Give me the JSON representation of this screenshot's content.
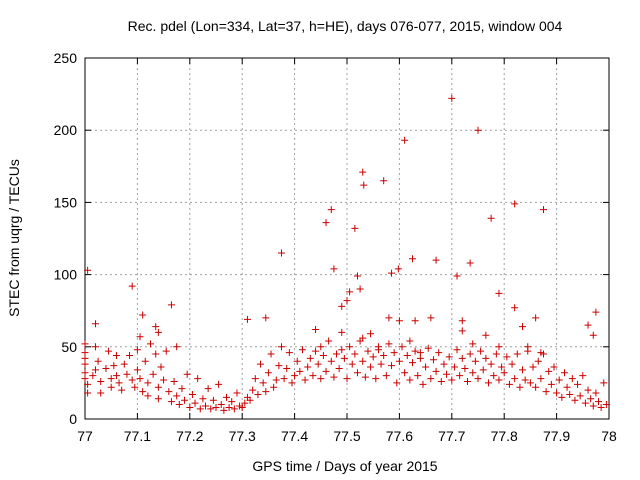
{
  "chart_data": {
    "type": "scatter",
    "title": "Rec. pdel (Lon=334, Lat=37, h=HE), days 076-077, 2015, window 004",
    "xlabel": "GPS time / Days of year 2015",
    "ylabel": "STEC from uqrg / TECUs",
    "xlim": [
      77.0,
      78.0
    ],
    "ylim": [
      0,
      250
    ],
    "xticks": [
      "77",
      "77.1",
      "77.2",
      "77.3",
      "77.4",
      "77.5",
      "77.6",
      "77.7",
      "77.8",
      "77.9",
      "78"
    ],
    "yticks": [
      "0",
      "50",
      "100",
      "150",
      "200",
      "250"
    ],
    "grid": true,
    "marker": "plus",
    "color": "#cc0000",
    "series": [
      {
        "name": "STEC",
        "points": [
          [
            77.005,
            103
          ],
          [
            77.02,
            66
          ],
          [
            77.09,
            92
          ],
          [
            77.11,
            72
          ],
          [
            77.135,
            64
          ],
          [
            77.165,
            79
          ],
          [
            77.175,
            50
          ],
          [
            77.31,
            69
          ],
          [
            77.345,
            70
          ],
          [
            77.375,
            115
          ],
          [
            77.44,
            62
          ],
          [
            77.46,
            136
          ],
          [
            77.47,
            145
          ],
          [
            77.475,
            104
          ],
          [
            77.49,
            78
          ],
          [
            77.5,
            82
          ],
          [
            77.505,
            88
          ],
          [
            77.515,
            132
          ],
          [
            77.52,
            99
          ],
          [
            77.525,
            90
          ],
          [
            77.53,
            171
          ],
          [
            77.532,
            162
          ],
          [
            77.545,
            59
          ],
          [
            77.57,
            165
          ],
          [
            77.585,
            101
          ],
          [
            77.598,
            104
          ],
          [
            77.61,
            193
          ],
          [
            77.625,
            111
          ],
          [
            77.66,
            70
          ],
          [
            77.67,
            110
          ],
          [
            77.7,
            222
          ],
          [
            77.71,
            99
          ],
          [
            77.72,
            61
          ],
          [
            77.735,
            108
          ],
          [
            77.75,
            200
          ],
          [
            77.765,
            58
          ],
          [
            77.775,
            139
          ],
          [
            77.79,
            87
          ],
          [
            77.82,
            149
          ],
          [
            77.82,
            77
          ],
          [
            77.835,
            64
          ],
          [
            77.86,
            70
          ],
          [
            77.875,
            145
          ],
          [
            77.96,
            65
          ],
          [
            77.97,
            58
          ],
          [
            77.975,
            74
          ],
          [
            77.0,
            52
          ],
          [
            77.0,
            46
          ],
          [
            77.0,
            42
          ],
          [
            77.0,
            38
          ],
          [
            77.0,
            32
          ],
          [
            77.0,
            28
          ],
          [
            77.005,
            24
          ],
          [
            77.005,
            18
          ],
          [
            77.015,
            30
          ],
          [
            77.02,
            34
          ],
          [
            77.025,
            40
          ],
          [
            77.03,
            26
          ],
          [
            77.03,
            18
          ],
          [
            77.04,
            35
          ],
          [
            77.045,
            47
          ],
          [
            77.05,
            28
          ],
          [
            77.05,
            22
          ],
          [
            77.055,
            37
          ],
          [
            77.06,
            30
          ],
          [
            77.065,
            25
          ],
          [
            77.07,
            20
          ],
          [
            77.075,
            38
          ],
          [
            77.08,
            31
          ],
          [
            77.085,
            44
          ],
          [
            77.09,
            27
          ],
          [
            77.095,
            22
          ],
          [
            77.1,
            48
          ],
          [
            77.1,
            34
          ],
          [
            77.105,
            57
          ],
          [
            77.105,
            28
          ],
          [
            77.11,
            19
          ],
          [
            77.115,
            40
          ],
          [
            77.12,
            25
          ],
          [
            77.12,
            16
          ],
          [
            77.125,
            52
          ],
          [
            77.13,
            31
          ],
          [
            77.135,
            45
          ],
          [
            77.14,
            22
          ],
          [
            77.14,
            14
          ],
          [
            77.145,
            36
          ],
          [
            77.15,
            27
          ],
          [
            77.155,
            47
          ],
          [
            77.16,
            19
          ],
          [
            77.165,
            12
          ],
          [
            77.17,
            26
          ],
          [
            77.175,
            16
          ],
          [
            77.18,
            10
          ],
          [
            77.185,
            21
          ],
          [
            77.19,
            13
          ],
          [
            77.195,
            31
          ],
          [
            77.2,
            8
          ],
          [
            77.205,
            17
          ],
          [
            77.21,
            11
          ],
          [
            77.215,
            28
          ],
          [
            77.22,
            7
          ],
          [
            77.225,
            14
          ],
          [
            77.23,
            9
          ],
          [
            77.235,
            21
          ],
          [
            77.24,
            7
          ],
          [
            77.245,
            13
          ],
          [
            77.25,
            8
          ],
          [
            77.255,
            24
          ],
          [
            77.26,
            10
          ],
          [
            77.265,
            6
          ],
          [
            77.27,
            15
          ],
          [
            77.275,
            8
          ],
          [
            77.28,
            12
          ],
          [
            77.285,
            7
          ],
          [
            77.29,
            18
          ],
          [
            77.295,
            9
          ],
          [
            77.3,
            8
          ],
          [
            77.305,
            11
          ],
          [
            77.31,
            15
          ],
          [
            77.315,
            13
          ],
          [
            77.32,
            20
          ],
          [
            77.325,
            28
          ],
          [
            77.33,
            17
          ],
          [
            77.335,
            38
          ],
          [
            77.34,
            25
          ],
          [
            77.345,
            19
          ],
          [
            77.35,
            32
          ],
          [
            77.355,
            45
          ],
          [
            77.36,
            22
          ],
          [
            77.365,
            27
          ],
          [
            77.37,
            37
          ],
          [
            77.375,
            50
          ],
          [
            77.38,
            28
          ],
          [
            77.385,
            35
          ],
          [
            77.39,
            46
          ],
          [
            77.395,
            25
          ],
          [
            77.4,
            30
          ],
          [
            77.405,
            40
          ],
          [
            77.41,
            33
          ],
          [
            77.415,
            48
          ],
          [
            77.42,
            27
          ],
          [
            77.425,
            36
          ],
          [
            77.43,
            42
          ],
          [
            77.435,
            30
          ],
          [
            77.44,
            47
          ],
          [
            77.445,
            38
          ],
          [
            77.45,
            28
          ],
          [
            77.455,
            44
          ],
          [
            77.46,
            33
          ],
          [
            77.465,
            54
          ],
          [
            77.47,
            40
          ],
          [
            77.475,
            29
          ],
          [
            77.48,
            45
          ],
          [
            77.485,
            35
          ],
          [
            77.49,
            60
          ],
          [
            77.495,
            42
          ],
          [
            77.5,
            28
          ],
          [
            77.505,
            50
          ],
          [
            77.51,
            38
          ],
          [
            77.515,
            45
          ],
          [
            77.52,
            32
          ],
          [
            77.525,
            54
          ],
          [
            77.53,
            40
          ],
          [
            77.535,
            29
          ],
          [
            77.54,
            47
          ],
          [
            77.545,
            36
          ],
          [
            77.55,
            43
          ],
          [
            77.555,
            28
          ],
          [
            77.56,
            50
          ],
          [
            77.565,
            38
          ],
          [
            77.57,
            44
          ],
          [
            77.575,
            30
          ],
          [
            77.58,
            52
          ],
          [
            77.585,
            37
          ],
          [
            77.59,
            46
          ],
          [
            77.595,
            25
          ],
          [
            77.6,
            40
          ],
          [
            77.605,
            50
          ],
          [
            77.61,
            32
          ],
          [
            77.615,
            44
          ],
          [
            77.62,
            27
          ],
          [
            77.625,
            39
          ],
          [
            77.63,
            47
          ],
          [
            77.635,
            30
          ],
          [
            77.64,
            42
          ],
          [
            77.645,
            24
          ],
          [
            77.65,
            36
          ],
          [
            77.655,
            49
          ],
          [
            77.66,
            28
          ],
          [
            77.665,
            41
          ],
          [
            77.67,
            33
          ],
          [
            77.675,
            46
          ],
          [
            77.68,
            26
          ],
          [
            77.685,
            38
          ],
          [
            77.69,
            31
          ],
          [
            77.695,
            43
          ],
          [
            77.7,
            27
          ],
          [
            77.705,
            36
          ],
          [
            77.71,
            48
          ],
          [
            77.715,
            30
          ],
          [
            77.72,
            42
          ],
          [
            77.725,
            35
          ],
          [
            77.73,
            26
          ],
          [
            77.735,
            45
          ],
          [
            77.74,
            32
          ],
          [
            77.745,
            40
          ],
          [
            77.75,
            28
          ],
          [
            77.755,
            47
          ],
          [
            77.76,
            34
          ],
          [
            77.765,
            42
          ],
          [
            77.77,
            25
          ],
          [
            77.775,
            38
          ],
          [
            77.78,
            30
          ],
          [
            77.785,
            45
          ],
          [
            77.79,
            27
          ],
          [
            77.795,
            36
          ],
          [
            77.8,
            32
          ],
          [
            77.805,
            43
          ],
          [
            77.81,
            24
          ],
          [
            77.815,
            38
          ],
          [
            77.82,
            28
          ],
          [
            77.825,
            45
          ],
          [
            77.83,
            22
          ],
          [
            77.835,
            34
          ],
          [
            77.84,
            27
          ],
          [
            77.845,
            47
          ],
          [
            77.85,
            25
          ],
          [
            77.855,
            36
          ],
          [
            77.86,
            22
          ],
          [
            77.865,
            40
          ],
          [
            77.87,
            28
          ],
          [
            77.875,
            45
          ],
          [
            77.88,
            19
          ],
          [
            77.885,
            33
          ],
          [
            77.89,
            24
          ],
          [
            77.895,
            36
          ],
          [
            77.9,
            18
          ],
          [
            77.905,
            27
          ],
          [
            77.91,
            15
          ],
          [
            77.915,
            32
          ],
          [
            77.92,
            22
          ],
          [
            77.925,
            17
          ],
          [
            77.93,
            28
          ],
          [
            77.935,
            13
          ],
          [
            77.94,
            24
          ],
          [
            77.945,
            16
          ],
          [
            77.95,
            30
          ],
          [
            77.955,
            11
          ],
          [
            77.96,
            20
          ],
          [
            77.965,
            14
          ],
          [
            77.97,
            9
          ],
          [
            77.975,
            18
          ],
          [
            77.98,
            12
          ],
          [
            77.985,
            8
          ],
          [
            77.99,
            25
          ],
          [
            77.995,
            10
          ],
          [
            77.02,
            50
          ],
          [
            77.06,
            44
          ],
          [
            77.14,
            60
          ],
          [
            77.45,
            50
          ],
          [
            77.49,
            48
          ],
          [
            77.53,
            56
          ],
          [
            77.56,
            48
          ],
          [
            77.58,
            70
          ],
          [
            77.6,
            68
          ],
          [
            77.62,
            54
          ],
          [
            77.63,
            68
          ],
          [
            77.64,
            46
          ],
          [
            77.72,
            68
          ],
          [
            77.74,
            52
          ],
          [
            77.79,
            50
          ],
          [
            77.845,
            50
          ],
          [
            77.87,
            46
          ]
        ]
      }
    ]
  }
}
